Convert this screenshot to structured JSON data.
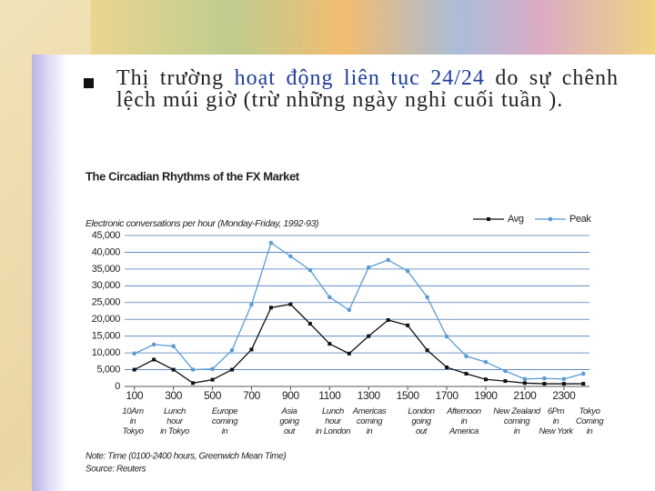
{
  "bullet": {
    "parts": [
      "Thị trường ",
      "hoạt động liên tục 24/24",
      " do sự chênh lệch múi giờ (trừ những ngày nghỉ cuối tuần )."
    ]
  },
  "chart_data": {
    "type": "line",
    "title": "The Circadian Rhythms of the FX Market",
    "y_label": "Electronic conversations per hour (Monday-Friday, 1992-93)",
    "x": [
      100,
      200,
      300,
      400,
      500,
      600,
      700,
      800,
      900,
      1000,
      1100,
      1200,
      1300,
      1400,
      1500,
      1600,
      1700,
      1800,
      1900,
      2000,
      2100,
      2200,
      2300,
      2400
    ],
    "series": [
      {
        "name": "Avg",
        "color": "#111111",
        "marker": "square",
        "values": [
          5000,
          8000,
          5000,
          1000,
          2000,
          5000,
          11000,
          23500,
          24500,
          18700,
          12700,
          9800,
          15000,
          19800,
          18200,
          10800,
          5700,
          3800,
          2100,
          1600,
          1000,
          800,
          800,
          800
        ]
      },
      {
        "name": "Peak",
        "color": "#5b9bd5",
        "marker": "circle",
        "values": [
          9800,
          12500,
          12000,
          5000,
          5200,
          10800,
          24400,
          42800,
          38800,
          34700,
          26600,
          22800,
          35500,
          37700,
          34400,
          26600,
          14900,
          9000,
          7300,
          4600,
          2200,
          2400,
          2200,
          3800
        ]
      }
    ],
    "xlim": [
      50,
      2450
    ],
    "xticks": [
      100,
      300,
      500,
      700,
      900,
      1100,
      1300,
      1500,
      1700,
      1900,
      2100,
      2300
    ],
    "ylim": [
      0,
      45000
    ],
    "yticks": [
      0,
      {
        "value": 5000,
        "label": "5,000"
      },
      {
        "value": 10000,
        "label": "10,000"
      },
      {
        "value": 15000,
        "label": "15,000"
      },
      {
        "value": 20000,
        "label": "20,000"
      },
      {
        "value": 25000,
        "label": "25,000"
      },
      {
        "value": 30000,
        "label": "30,000"
      },
      {
        "value": 35000,
        "label": "35,000"
      },
      {
        "value": 40000,
        "label": "40,000"
      },
      {
        "value": 45000,
        "label": "45,000"
      }
    ],
    "grid": true,
    "legend": "top-right",
    "annotations": [
      [
        "10Am",
        "in",
        "Tokyo"
      ],
      [
        "Lunch",
        "hour",
        "in Tokyo"
      ],
      [
        "Europe",
        "coming",
        "in"
      ],
      [
        "Asia",
        "going",
        "out"
      ],
      [
        "Lunch",
        "hour",
        "in London"
      ],
      [
        "Americas",
        "coming",
        "in"
      ],
      [
        "London",
        "going",
        "out"
      ],
      [
        "Afternoon",
        "in",
        "America"
      ],
      [
        "New Zealand",
        "coming",
        "in"
      ],
      [
        "6Pm",
        "in",
        "New York"
      ],
      [
        "Tokyo",
        "Coming",
        "in"
      ]
    ],
    "notes": [
      "Note: Time (0100-2400 hours, Greenwich Mean Time)",
      "Source: Reuters"
    ]
  }
}
